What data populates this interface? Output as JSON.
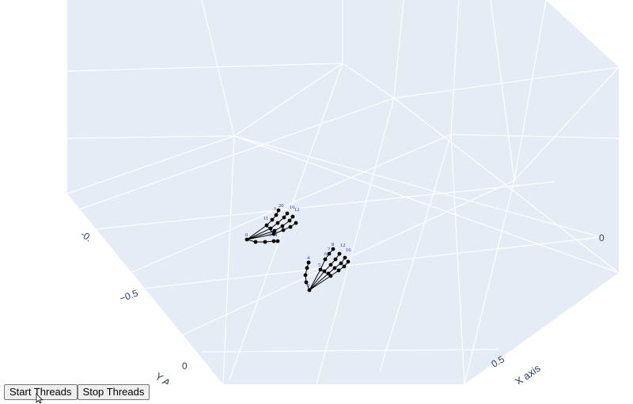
{
  "plot": {
    "background": "#e5ecf6",
    "grid_color": "#ffffff",
    "y_axis": {
      "title": "Y A",
      "ticks": [
        "-0.",
        "−0.5",
        "0"
      ]
    },
    "x_axis": {
      "title": "X axis",
      "ticks": [
        "0.5",
        "0"
      ]
    },
    "marker_color": "#000000",
    "label_color": "#2a2ac8"
  },
  "hand_a_labels": [
    "20",
    "1",
    "16",
    "12",
    "11",
    "0",
    "3",
    "4"
  ],
  "hand_b_labels": [
    "4",
    "8",
    "12",
    "7",
    "16",
    "6",
    "5",
    "0"
  ],
  "controls": {
    "start_label": "Start Threads",
    "stop_label": "Stop Threads"
  }
}
